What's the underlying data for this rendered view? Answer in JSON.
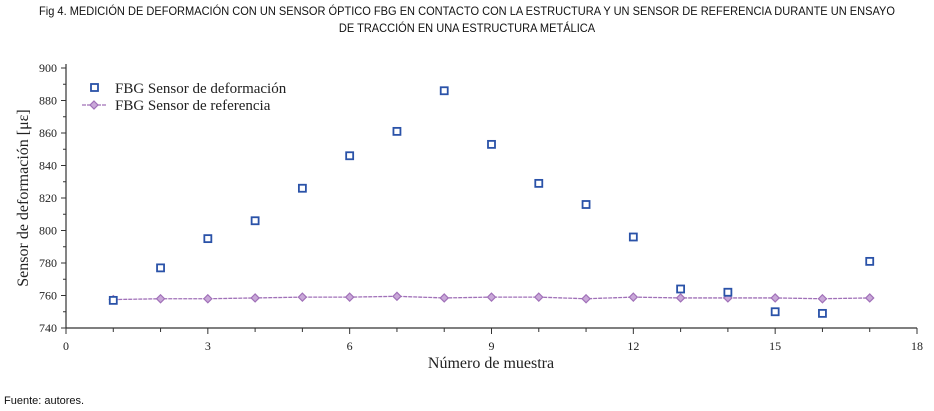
{
  "figure": {
    "title_line1": "Fig 4. MEDICIÓN DE DEFORMACIÓN CON UN SENSOR ÓPTICO FBG EN CONTACTO CON LA ESTRUCTURA Y UN SENSOR DE REFERENCIA DURANTE UN ENSAYO",
    "title_line2": "DE TRACCIÓN EN UNA ESTRUCTURA METÁLICA",
    "source": "Fuente: autores."
  },
  "chart_data": {
    "type": "scatter",
    "title": "",
    "xlabel": "Número de muestra",
    "ylabel": "Sensor de deformación [με]",
    "xlim": [
      0,
      18
    ],
    "ylim": [
      740,
      900
    ],
    "xticks": [
      0,
      3,
      6,
      9,
      12,
      15,
      18
    ],
    "yticks": [
      740,
      760,
      780,
      800,
      820,
      840,
      860,
      880,
      900
    ],
    "grid": false,
    "legend_position": "top-left",
    "x": [
      1,
      2,
      3,
      4,
      5,
      6,
      7,
      8,
      9,
      10,
      11,
      12,
      13,
      14,
      15,
      16,
      17
    ],
    "series": [
      {
        "name": "FBG Sensor de deformación",
        "style": "open-square markers",
        "color": "#2a52a8",
        "values": [
          757,
          777,
          795,
          806,
          826,
          846,
          861,
          886,
          853,
          829,
          816,
          796,
          764,
          762,
          750,
          749,
          781
        ]
      },
      {
        "name": "FBG Sensor de referencia",
        "style": "line with diamond markers",
        "color": "#a070b8",
        "values": [
          757.5,
          758,
          758,
          758.5,
          759,
          759,
          759.5,
          758.5,
          759,
          759,
          758,
          759,
          758.5,
          758.5,
          758.5,
          758,
          758.5
        ]
      }
    ]
  }
}
